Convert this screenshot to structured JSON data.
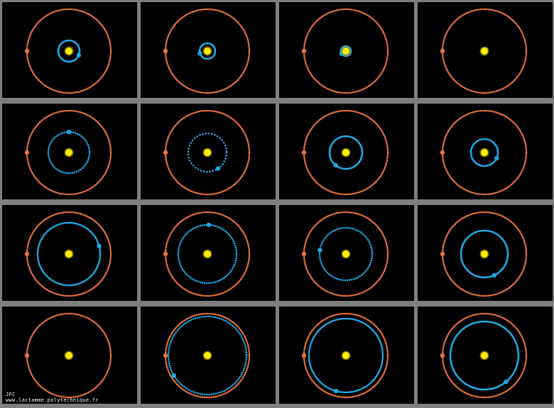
{
  "credit": {
    "author": "JFC",
    "url": "www.lactamme.polytechnique.fr"
  }
}
